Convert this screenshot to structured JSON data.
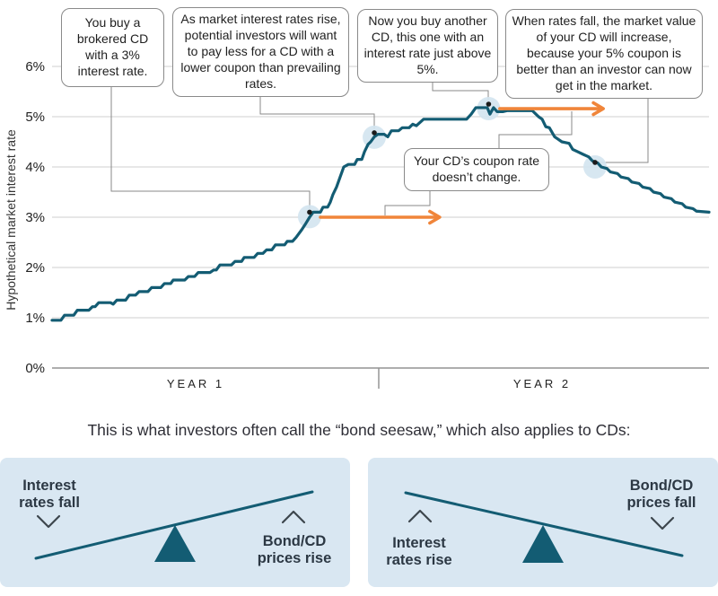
{
  "colors": {
    "teal": "#135c73",
    "orange": "#f0853a",
    "halo": "#d3e4ef",
    "panel": "#d9e7f2",
    "grid": "#cfcfcf",
    "axis": "#949494",
    "conn": "#8a8a8a",
    "dot": "#1b1b1b",
    "ink": "#1f1f1f"
  },
  "chart_data": {
    "type": "line",
    "ylabel": "Hypothetical market interest rate",
    "ylim": [
      0,
      6.5
    ],
    "grid": "horizontal",
    "yticks": [
      {
        "label": "0%",
        "value": 0
      },
      {
        "label": "1%",
        "value": 1
      },
      {
        "label": "2%",
        "value": 2
      },
      {
        "label": "3%",
        "value": 3
      },
      {
        "label": "4%",
        "value": 4
      },
      {
        "label": "5%",
        "value": 5
      },
      {
        "label": "6%",
        "value": 6
      }
    ],
    "xcategories": [
      "YEAR 1",
      "YEAR 2"
    ],
    "xrange_years": [
      0,
      2
    ],
    "series": {
      "name": "Hypothetical market interest rate",
      "points": [
        [
          0,
          0.95
        ],
        [
          0.027,
          0.95
        ],
        [
          0.038,
          1.05
        ],
        [
          0.066,
          1.05
        ],
        [
          0.077,
          1.15
        ],
        [
          0.112,
          1.15
        ],
        [
          0.123,
          1.22
        ],
        [
          0.131,
          1.22
        ],
        [
          0.142,
          1.3
        ],
        [
          0.178,
          1.3
        ],
        [
          0.186,
          1.27
        ],
        [
          0.197,
          1.35
        ],
        [
          0.224,
          1.35
        ],
        [
          0.235,
          1.45
        ],
        [
          0.254,
          1.45
        ],
        [
          0.265,
          1.52
        ],
        [
          0.292,
          1.52
        ],
        [
          0.303,
          1.6
        ],
        [
          0.331,
          1.6
        ],
        [
          0.342,
          1.68
        ],
        [
          0.361,
          1.68
        ],
        [
          0.369,
          1.75
        ],
        [
          0.404,
          1.75
        ],
        [
          0.415,
          1.82
        ],
        [
          0.434,
          1.82
        ],
        [
          0.445,
          1.9
        ],
        [
          0.481,
          1.9
        ],
        [
          0.492,
          1.95
        ],
        [
          0.5,
          1.95
        ],
        [
          0.511,
          2.05
        ],
        [
          0.546,
          2.05
        ],
        [
          0.557,
          2.12
        ],
        [
          0.577,
          2.12
        ],
        [
          0.585,
          2.2
        ],
        [
          0.615,
          2.2
        ],
        [
          0.626,
          2.28
        ],
        [
          0.642,
          2.28
        ],
        [
          0.653,
          2.35
        ],
        [
          0.669,
          2.35
        ],
        [
          0.68,
          2.45
        ],
        [
          0.708,
          2.45
        ],
        [
          0.716,
          2.52
        ],
        [
          0.732,
          2.52
        ],
        [
          0.743,
          2.6
        ],
        [
          0.76,
          2.75
        ],
        [
          0.77,
          2.85
        ],
        [
          0.784,
          3.0
        ],
        [
          0.795,
          3.1
        ],
        [
          0.817,
          3.1
        ],
        [
          0.825,
          3.2
        ],
        [
          0.839,
          3.2
        ],
        [
          0.847,
          3.3
        ],
        [
          0.855,
          3.45
        ],
        [
          0.866,
          3.6
        ],
        [
          0.877,
          3.8
        ],
        [
          0.888,
          4.0
        ],
        [
          0.902,
          4.05
        ],
        [
          0.921,
          4.05
        ],
        [
          0.929,
          4.15
        ],
        [
          0.943,
          4.15
        ],
        [
          0.951,
          4.3
        ],
        [
          0.962,
          4.45
        ],
        [
          0.97,
          4.5
        ],
        [
          0.981,
          4.6
        ],
        [
          0.992,
          4.65
        ],
        [
          1.011,
          4.65
        ],
        [
          1.022,
          4.6
        ],
        [
          1.033,
          4.72
        ],
        [
          1.055,
          4.72
        ],
        [
          1.066,
          4.78
        ],
        [
          1.087,
          4.78
        ],
        [
          1.098,
          4.85
        ],
        [
          1.109,
          4.82
        ],
        [
          1.131,
          4.95
        ],
        [
          1.262,
          4.95
        ],
        [
          1.276,
          5.05
        ],
        [
          1.29,
          5.18
        ],
        [
          1.317,
          5.18
        ],
        [
          1.325,
          5.18
        ],
        [
          1.333,
          5.05
        ],
        [
          1.344,
          5.18
        ],
        [
          1.355,
          5.1
        ],
        [
          1.372,
          5.1
        ],
        [
          1.385,
          5.12
        ],
        [
          1.462,
          5.12
        ],
        [
          1.481,
          5.0
        ],
        [
          1.492,
          4.95
        ],
        [
          1.503,
          4.8
        ],
        [
          1.514,
          4.78
        ],
        [
          1.53,
          4.6
        ],
        [
          1.541,
          4.55
        ],
        [
          1.552,
          4.5
        ],
        [
          1.574,
          4.47
        ],
        [
          1.585,
          4.35
        ],
        [
          1.601,
          4.3
        ],
        [
          1.617,
          4.25
        ],
        [
          1.634,
          4.2
        ],
        [
          1.645,
          4.12
        ],
        [
          1.661,
          4.08
        ],
        [
          1.672,
          4.0
        ],
        [
          1.689,
          3.97
        ],
        [
          1.7,
          3.9
        ],
        [
          1.721,
          3.87
        ],
        [
          1.732,
          3.8
        ],
        [
          1.754,
          3.77
        ],
        [
          1.765,
          3.7
        ],
        [
          1.787,
          3.67
        ],
        [
          1.798,
          3.6
        ],
        [
          1.82,
          3.57
        ],
        [
          1.831,
          3.5
        ],
        [
          1.852,
          3.47
        ],
        [
          1.863,
          3.4
        ],
        [
          1.885,
          3.37
        ],
        [
          1.896,
          3.3
        ],
        [
          1.918,
          3.27
        ],
        [
          1.929,
          3.2
        ],
        [
          1.951,
          3.17
        ],
        [
          1.962,
          3.12
        ],
        [
          2.0,
          3.1
        ]
      ]
    },
    "markers": [
      {
        "year": 0.784,
        "rate": 3.1,
        "note": "first CD bought at 3%"
      },
      {
        "year": 0.981,
        "rate": 4.68,
        "note": "rates rising, CD worth less"
      },
      {
        "year": 1.329,
        "rate": 5.25,
        "note": "second CD bought just above 5%"
      },
      {
        "year": 1.653,
        "rate": 4.09,
        "note": "rates falling, CD value increases"
      }
    ],
    "coupon_arrows": [
      {
        "from_year": 0.817,
        "to_year": 1.18,
        "rate": 3.0
      },
      {
        "from_year": 1.363,
        "to_year": 1.678,
        "rate": 5.16
      }
    ]
  },
  "callouts": [
    {
      "text": "You buy a brokered CD with a 3% interest rate."
    },
    {
      "text": "As market interest rates rise, potential investors will want to pay less for a CD with a lower coupon than prevailing rates."
    },
    {
      "text": "Now you buy another CD, this one with an interest rate just above 5%."
    },
    {
      "text": "When rates fall, the market value of your CD will increase, because your 5% coupon is better than an investor can now get in the market."
    },
    {
      "text": "Your CD’s coupon rate doesn’t change."
    }
  ],
  "xaxis": {
    "year1": "YEAR 1",
    "year2": "YEAR 2"
  },
  "seesaw": {
    "intro": "This is what investors often call the “bond seesaw,” which also applies to CDs:",
    "left": {
      "label_top": "Interest rates fall",
      "dir_top": "down",
      "label_bottom": "Bond/CD prices rise",
      "dir_bottom": "up",
      "tilt": "up-to-right"
    },
    "right": {
      "label_top": "Bond/CD prices fall",
      "dir_top": "down",
      "label_bottom": "Interest rates rise",
      "dir_bottom": "up",
      "tilt": "down-to-right"
    }
  }
}
